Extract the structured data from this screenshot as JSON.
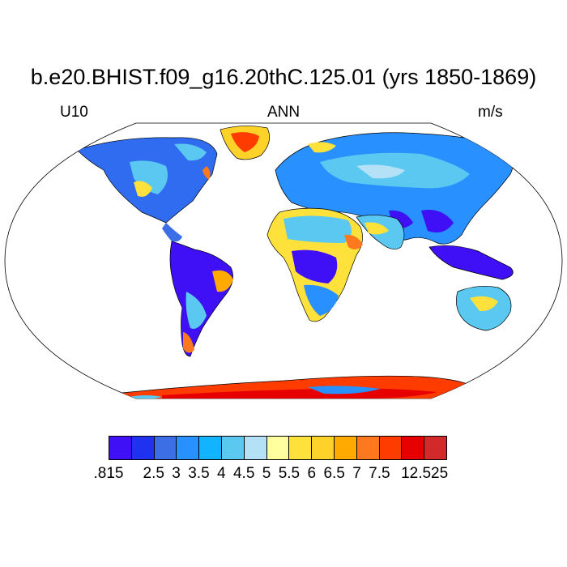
{
  "title": "b.e20.BHIST.f09_g16.20thC.125.01 (yrs 1850-1869)",
  "left_label": "U10",
  "center_label": "ANN",
  "right_label": "m/s",
  "colorbar": {
    "colors": [
      "#3f0ff5",
      "#1e32f0",
      "#3c6ee6",
      "#2890ff",
      "#12b4ff",
      "#5ac8f0",
      "#b4e1f5",
      "#ffffa0",
      "#ffe13c",
      "#ffd22a",
      "#ffaa00",
      "#ff781e",
      "#ff3c00",
      "#e60000",
      "#d22a2a"
    ],
    "labels": [
      {
        "text": ".815",
        "boundary": 0
      },
      {
        "text": "2.5",
        "boundary": 2
      },
      {
        "text": "3",
        "boundary": 3
      },
      {
        "text": "3.5",
        "boundary": 4
      },
      {
        "text": "4",
        "boundary": 5
      },
      {
        "text": "4.5",
        "boundary": 6
      },
      {
        "text": "5",
        "boundary": 7
      },
      {
        "text": "5.5",
        "boundary": 8
      },
      {
        "text": "6",
        "boundary": 9
      },
      {
        "text": "6.5",
        "boundary": 10
      },
      {
        "text": "7",
        "boundary": 11
      },
      {
        "text": "7.5",
        "boundary": 12
      },
      {
        "text": "12.525",
        "boundary": 14
      }
    ]
  }
}
